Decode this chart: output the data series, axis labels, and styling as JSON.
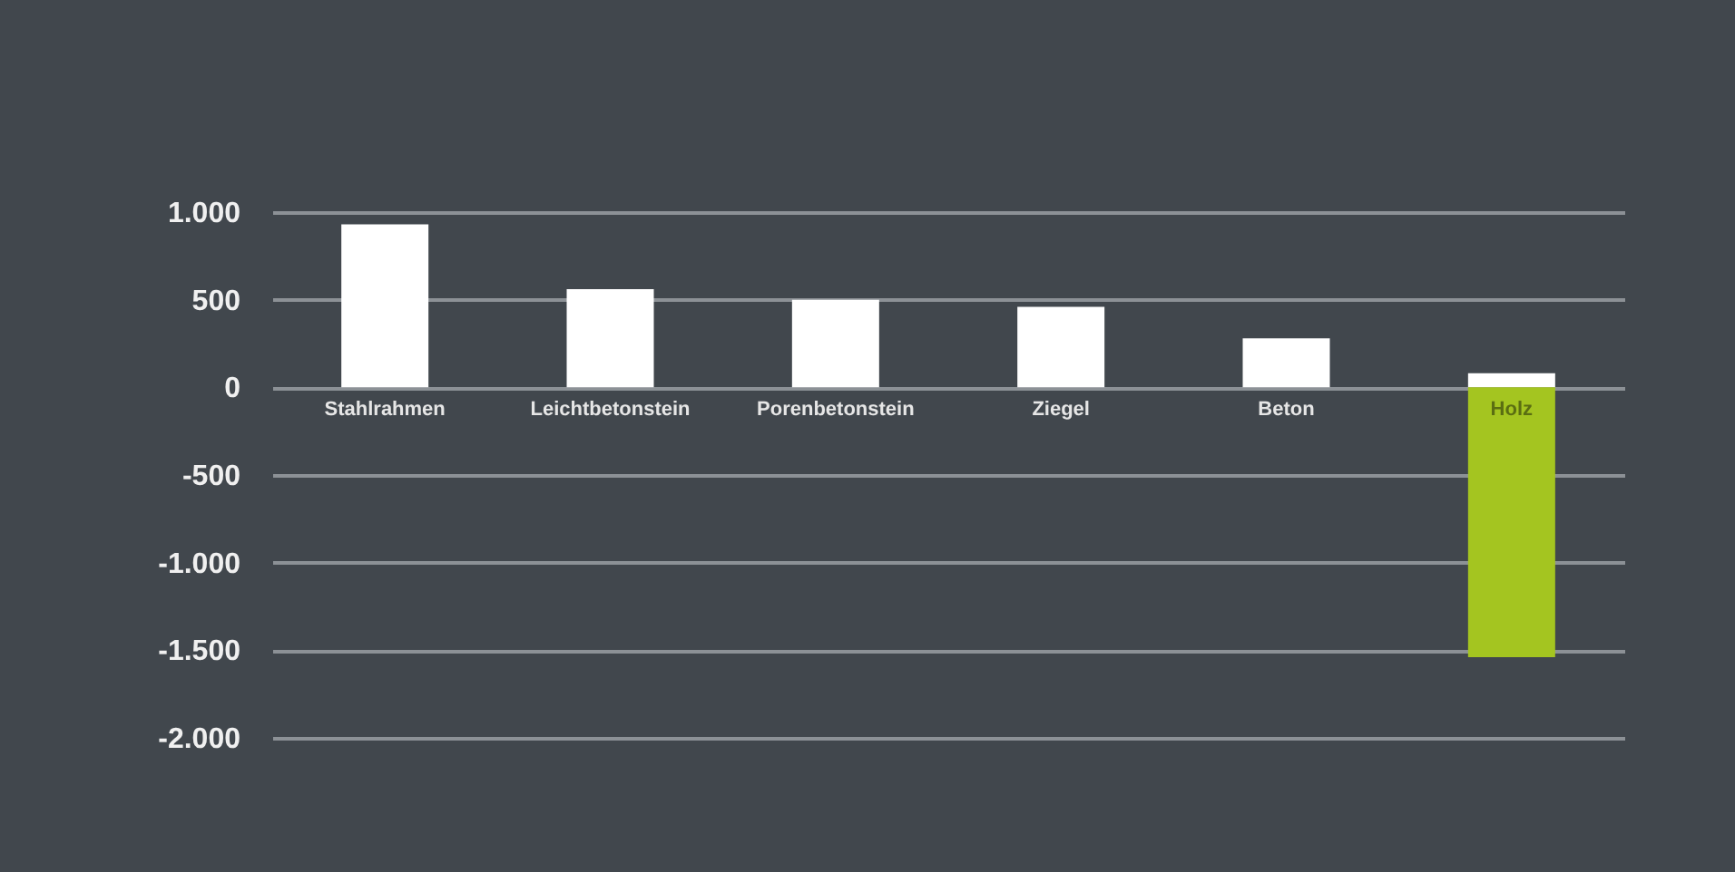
{
  "chart_data": {
    "type": "bar",
    "stacked": true,
    "categories": [
      "Stahlrahmen",
      "Leichtbetonstein",
      "Porenbetonstein",
      "Ziegel",
      "Beton",
      "Holz"
    ],
    "series": [
      {
        "color": "#ffffff",
        "values": [
          930,
          560,
          500,
          460,
          280,
          80
        ]
      },
      {
        "color": "#a4c520",
        "values": [
          null,
          null,
          null,
          null,
          null,
          -1540
        ]
      }
    ],
    "ylim": [
      -2000,
      1000
    ],
    "yticks": [
      {
        "value": -2000,
        "label": "-2.000"
      },
      {
        "value": -1500,
        "label": "-1.500"
      },
      {
        "value": -1000,
        "label": "-1.000"
      },
      {
        "value": -500,
        "label": "-500"
      },
      0,
      500,
      {
        "value": 1000,
        "label": "1.000"
      }
    ],
    "grid": "y",
    "legend": false
  }
}
